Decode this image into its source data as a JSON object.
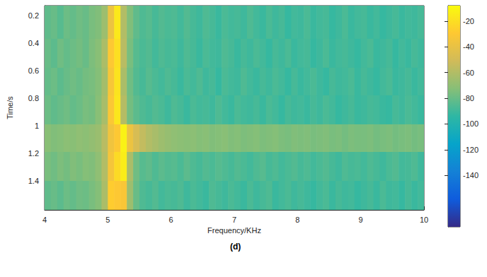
{
  "chart_data": {
    "type": "heatmap",
    "title": "(d)",
    "x_label": "Frequency/KHz",
    "y_label": "Time/s",
    "xlim": [
      4,
      10
    ],
    "xticks": [
      4,
      5,
      6,
      7,
      8,
      9,
      10
    ],
    "ylim": [
      0.13,
      1.61
    ],
    "yticks": [
      0.2,
      0.4,
      0.6,
      0.8,
      1,
      1.2,
      1.4
    ],
    "x_bins": [
      4.0,
      4.1,
      4.2,
      4.3,
      4.4,
      4.5,
      4.6,
      4.7,
      4.8,
      4.9,
      5.0,
      5.1,
      5.2,
      5.3,
      5.4,
      5.5,
      5.6,
      5.7,
      5.8,
      5.9,
      6.0,
      6.1,
      6.2,
      6.3,
      6.4,
      6.5,
      6.6,
      6.7,
      6.8,
      6.9,
      7.0,
      7.1,
      7.2,
      7.3,
      7.4,
      7.5,
      7.6,
      7.7,
      7.8,
      7.9,
      8.0,
      8.1,
      8.2,
      8.3,
      8.4,
      8.5,
      8.6,
      8.7,
      8.8,
      8.9,
      9.0,
      9.1,
      9.2,
      9.3,
      9.4,
      9.5,
      9.6,
      9.7,
      9.8,
      9.9,
      10.0
    ],
    "y_bins": [
      0.13,
      0.37,
      0.58,
      0.78,
      0.99,
      1.19,
      1.4,
      1.61
    ],
    "cells": [
      [
        -82,
        -80,
        -84,
        -79,
        -81,
        -78,
        -80,
        -76,
        -74,
        -66,
        -38,
        -16,
        -60,
        -74,
        -82,
        -86,
        -84,
        -88,
        -85,
        -87,
        -86,
        -89,
        -85,
        -88,
        -90,
        -86,
        -88,
        -91,
        -87,
        -89,
        -88,
        -90,
        -86,
        -89,
        -91,
        -87,
        -90,
        -88,
        -92,
        -89,
        -90,
        -87,
        -91,
        -89,
        -88,
        -92,
        -90,
        -87,
        -91,
        -89,
        -88,
        -91,
        -89,
        -92,
        -90,
        -88,
        -91,
        -89,
        -90,
        -88
      ],
      [
        -80,
        -83,
        -78,
        -81,
        -79,
        -77,
        -80,
        -75,
        -72,
        -62,
        -30,
        -20,
        -58,
        -76,
        -84,
        -87,
        -85,
        -89,
        -86,
        -88,
        -87,
        -90,
        -86,
        -88,
        -91,
        -87,
        -89,
        -90,
        -86,
        -88,
        -91,
        -88,
        -90,
        -87,
        -89,
        -92,
        -88,
        -90,
        -87,
        -91,
        -89,
        -88,
        -92,
        -90,
        -87,
        -91,
        -89,
        -88,
        -90,
        -92,
        -89,
        -87,
        -91,
        -90,
        -88,
        -92,
        -89,
        -91,
        -88,
        -90
      ],
      [
        -81,
        -79,
        -83,
        -80,
        -78,
        -80,
        -77,
        -76,
        -73,
        -64,
        -33,
        -18,
        -62,
        -78,
        -85,
        -88,
        -84,
        -87,
        -89,
        -86,
        -88,
        -91,
        -87,
        -89,
        -86,
        -90,
        -88,
        -92,
        -87,
        -89,
        -90,
        -86,
        -89,
        -91,
        -88,
        -90,
        -87,
        -89,
        -92,
        -88,
        -91,
        -89,
        -87,
        -90,
        -92,
        -88,
        -90,
        -89,
        -87,
        -91,
        -88,
        -90,
        -92,
        -89,
        -87,
        -91,
        -90,
        -88,
        -91,
        -89
      ],
      [
        -79,
        -82,
        -80,
        -78,
        -81,
        -79,
        -76,
        -77,
        -72,
        -63,
        -31,
        -17,
        -59,
        -77,
        -83,
        -86,
        -88,
        -85,
        -87,
        -90,
        -86,
        -88,
        -91,
        -87,
        -89,
        -88,
        -90,
        -86,
        -89,
        -91,
        -87,
        -89,
        -90,
        -88,
        -91,
        -87,
        -89,
        -92,
        -88,
        -90,
        -89,
        -91,
        -88,
        -90,
        -87,
        -89,
        -92,
        -90,
        -88,
        -91,
        -90,
        -88,
        -89,
        -91,
        -92,
        -88,
        -90,
        -87,
        -89,
        -91
      ],
      [
        -72,
        -74,
        -73,
        -71,
        -72,
        -70,
        -71,
        -69,
        -67,
        -58,
        -36,
        -30,
        -12,
        -38,
        -48,
        -55,
        -60,
        -63,
        -66,
        -68,
        -70,
        -71,
        -72,
        -71,
        -73,
        -72,
        -74,
        -73,
        -72,
        -74,
        -73,
        -75,
        -74,
        -73,
        -75,
        -74,
        -73,
        -75,
        -76,
        -74,
        -75,
        -74,
        -76,
        -75,
        -74,
        -76,
        -75,
        -77,
        -75,
        -76,
        -76,
        -75,
        -77,
        -76,
        -75,
        -77,
        -76,
        -75,
        -77,
        -76
      ],
      [
        -76,
        -78,
        -75,
        -77,
        -74,
        -76,
        -73,
        -74,
        -70,
        -60,
        -34,
        -22,
        -14,
        -62,
        -78,
        -84,
        -82,
        -86,
        -83,
        -85,
        -84,
        -87,
        -83,
        -86,
        -88,
        -85,
        -87,
        -84,
        -86,
        -88,
        -85,
        -87,
        -89,
        -86,
        -84,
        -88,
        -86,
        -89,
        -87,
        -85,
        -88,
        -86,
        -89,
        -87,
        -85,
        -88,
        -90,
        -86,
        -88,
        -87,
        -89,
        -86,
        -88,
        -90,
        -87,
        -85,
        -89,
        -88,
        -86,
        -90
      ],
      [
        -82,
        -80,
        -83,
        -79,
        -81,
        -78,
        -79,
        -76,
        -73,
        -62,
        -28,
        -30,
        -32,
        -66,
        -80,
        -86,
        -88,
        -85,
        -89,
        -87,
        -88,
        -86,
        -90,
        -87,
        -89,
        -91,
        -86,
        -88,
        -90,
        -87,
        -89,
        -91,
        -87,
        -90,
        -88,
        -86,
        -91,
        -89,
        -87,
        -90,
        -88,
        -90,
        -92,
        -89,
        -87,
        -91,
        -88,
        -90,
        -89,
        -92,
        -90,
        -88,
        -91,
        -87,
        -90,
        -89,
        -92,
        -88,
        -91,
        -89
      ]
    ],
    "clim": [
      -180,
      -8
    ],
    "cticks": [
      -140,
      -120,
      -100,
      -80,
      -60,
      -40,
      -20
    ]
  }
}
